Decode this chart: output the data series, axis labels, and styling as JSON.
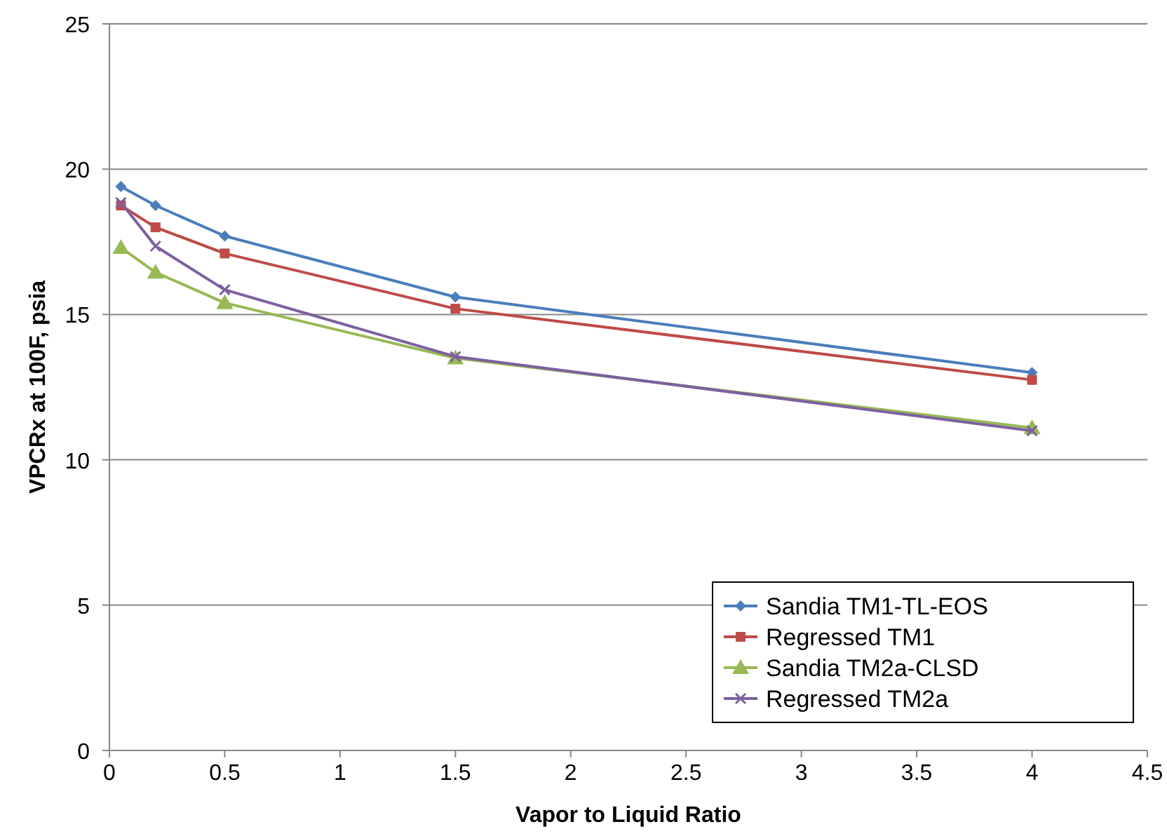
{
  "chart_data": {
    "type": "line",
    "xlabel": "Vapor to Liquid Ratio",
    "ylabel": "VPCRx at 100F, psia",
    "x": [
      0.05,
      0.2,
      0.5,
      1.5,
      4
    ],
    "xlim": [
      0,
      4.5
    ],
    "xticks": [
      0,
      0.5,
      1,
      1.5,
      2,
      2.5,
      3,
      3.5,
      4,
      4.5
    ],
    "ylim": [
      0,
      25
    ],
    "yticks": [
      0,
      5,
      10,
      15,
      20,
      25
    ],
    "grid": "y",
    "legend": "bottom right",
    "series": [
      {
        "name": "Sandia TM1-TL-EOS",
        "color": "#4a7ebb",
        "marker": "diamond",
        "values": [
          19.4,
          18.75,
          17.7,
          15.6,
          13.0
        ]
      },
      {
        "name": "Regressed TM1",
        "color": "#be4b48",
        "marker": "square",
        "values": [
          18.75,
          18.0,
          17.1,
          15.2,
          12.75
        ]
      },
      {
        "name": "Sandia TM2a-CLSD",
        "color": "#98b954",
        "marker": "triangle",
        "values": [
          17.3,
          16.45,
          15.4,
          13.5,
          11.1
        ]
      },
      {
        "name": "Regressed TM2a",
        "color": "#7d60a0",
        "marker": "cross",
        "values": [
          18.85,
          17.35,
          15.85,
          13.55,
          11.0
        ]
      }
    ]
  }
}
